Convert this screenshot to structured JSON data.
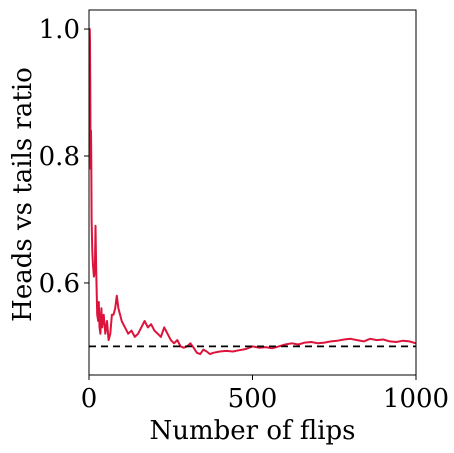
{
  "chart_data": {
    "type": "line",
    "title": "",
    "xlabel": "Number of flips",
    "ylabel": "Heads vs tails ratio",
    "xlim": [
      0,
      1000
    ],
    "ylim": [
      0.455,
      1.03
    ],
    "xticks": [
      0,
      500,
      1000
    ],
    "xtick_labels": [
      "0",
      "500",
      "1000"
    ],
    "yticks": [
      0.6,
      0.8,
      1.0
    ],
    "ytick_labels": [
      "0.6",
      "0.8",
      "1.0"
    ],
    "grid": false,
    "legend": "none",
    "series": [
      {
        "color": "#DC143C",
        "x": [
          1,
          2,
          3,
          4,
          5,
          6,
          7,
          8,
          10,
          12,
          15,
          18,
          20,
          22,
          25,
          28,
          30,
          32,
          35,
          38,
          40,
          45,
          50,
          55,
          60,
          65,
          70,
          75,
          80,
          85,
          90,
          95,
          100,
          110,
          120,
          130,
          140,
          150,
          160,
          170,
          180,
          190,
          200,
          210,
          220,
          230,
          240,
          250,
          260,
          270,
          280,
          290,
          300,
          310,
          320,
          330,
          340,
          350,
          360,
          370,
          380,
          400,
          420,
          440,
          460,
          480,
          500,
          520,
          540,
          560,
          580,
          600,
          620,
          640,
          660,
          680,
          700,
          720,
          740,
          760,
          780,
          800,
          820,
          840,
          860,
          880,
          900,
          920,
          940,
          960,
          980,
          1000
        ],
        "y": [
          1.0,
          1.0,
          0.98,
          0.9,
          0.78,
          0.84,
          0.79,
          0.7,
          0.65,
          0.63,
          0.61,
          0.62,
          0.69,
          0.62,
          0.55,
          0.54,
          0.57,
          0.53,
          0.52,
          0.56,
          0.53,
          0.55,
          0.52,
          0.54,
          0.51,
          0.52,
          0.55,
          0.55,
          0.56,
          0.58,
          0.56,
          0.55,
          0.54,
          0.53,
          0.52,
          0.525,
          0.515,
          0.52,
          0.53,
          0.54,
          0.53,
          0.535,
          0.525,
          0.52,
          0.515,
          0.53,
          0.52,
          0.51,
          0.505,
          0.51,
          0.5,
          0.498,
          0.5,
          0.505,
          0.498,
          0.49,
          0.488,
          0.495,
          0.492,
          0.488,
          0.49,
          0.492,
          0.493,
          0.492,
          0.494,
          0.496,
          0.5,
          0.498,
          0.499,
          0.497,
          0.5,
          0.503,
          0.505,
          0.503,
          0.506,
          0.507,
          0.505,
          0.506,
          0.508,
          0.509,
          0.511,
          0.512,
          0.51,
          0.508,
          0.512,
          0.51,
          0.511,
          0.508,
          0.507,
          0.509,
          0.508,
          0.505
        ]
      },
      {
        "style": "dashed",
        "color": "#000000",
        "x": [
          0,
          1000
        ],
        "y": [
          0.5,
          0.5
        ]
      }
    ]
  }
}
